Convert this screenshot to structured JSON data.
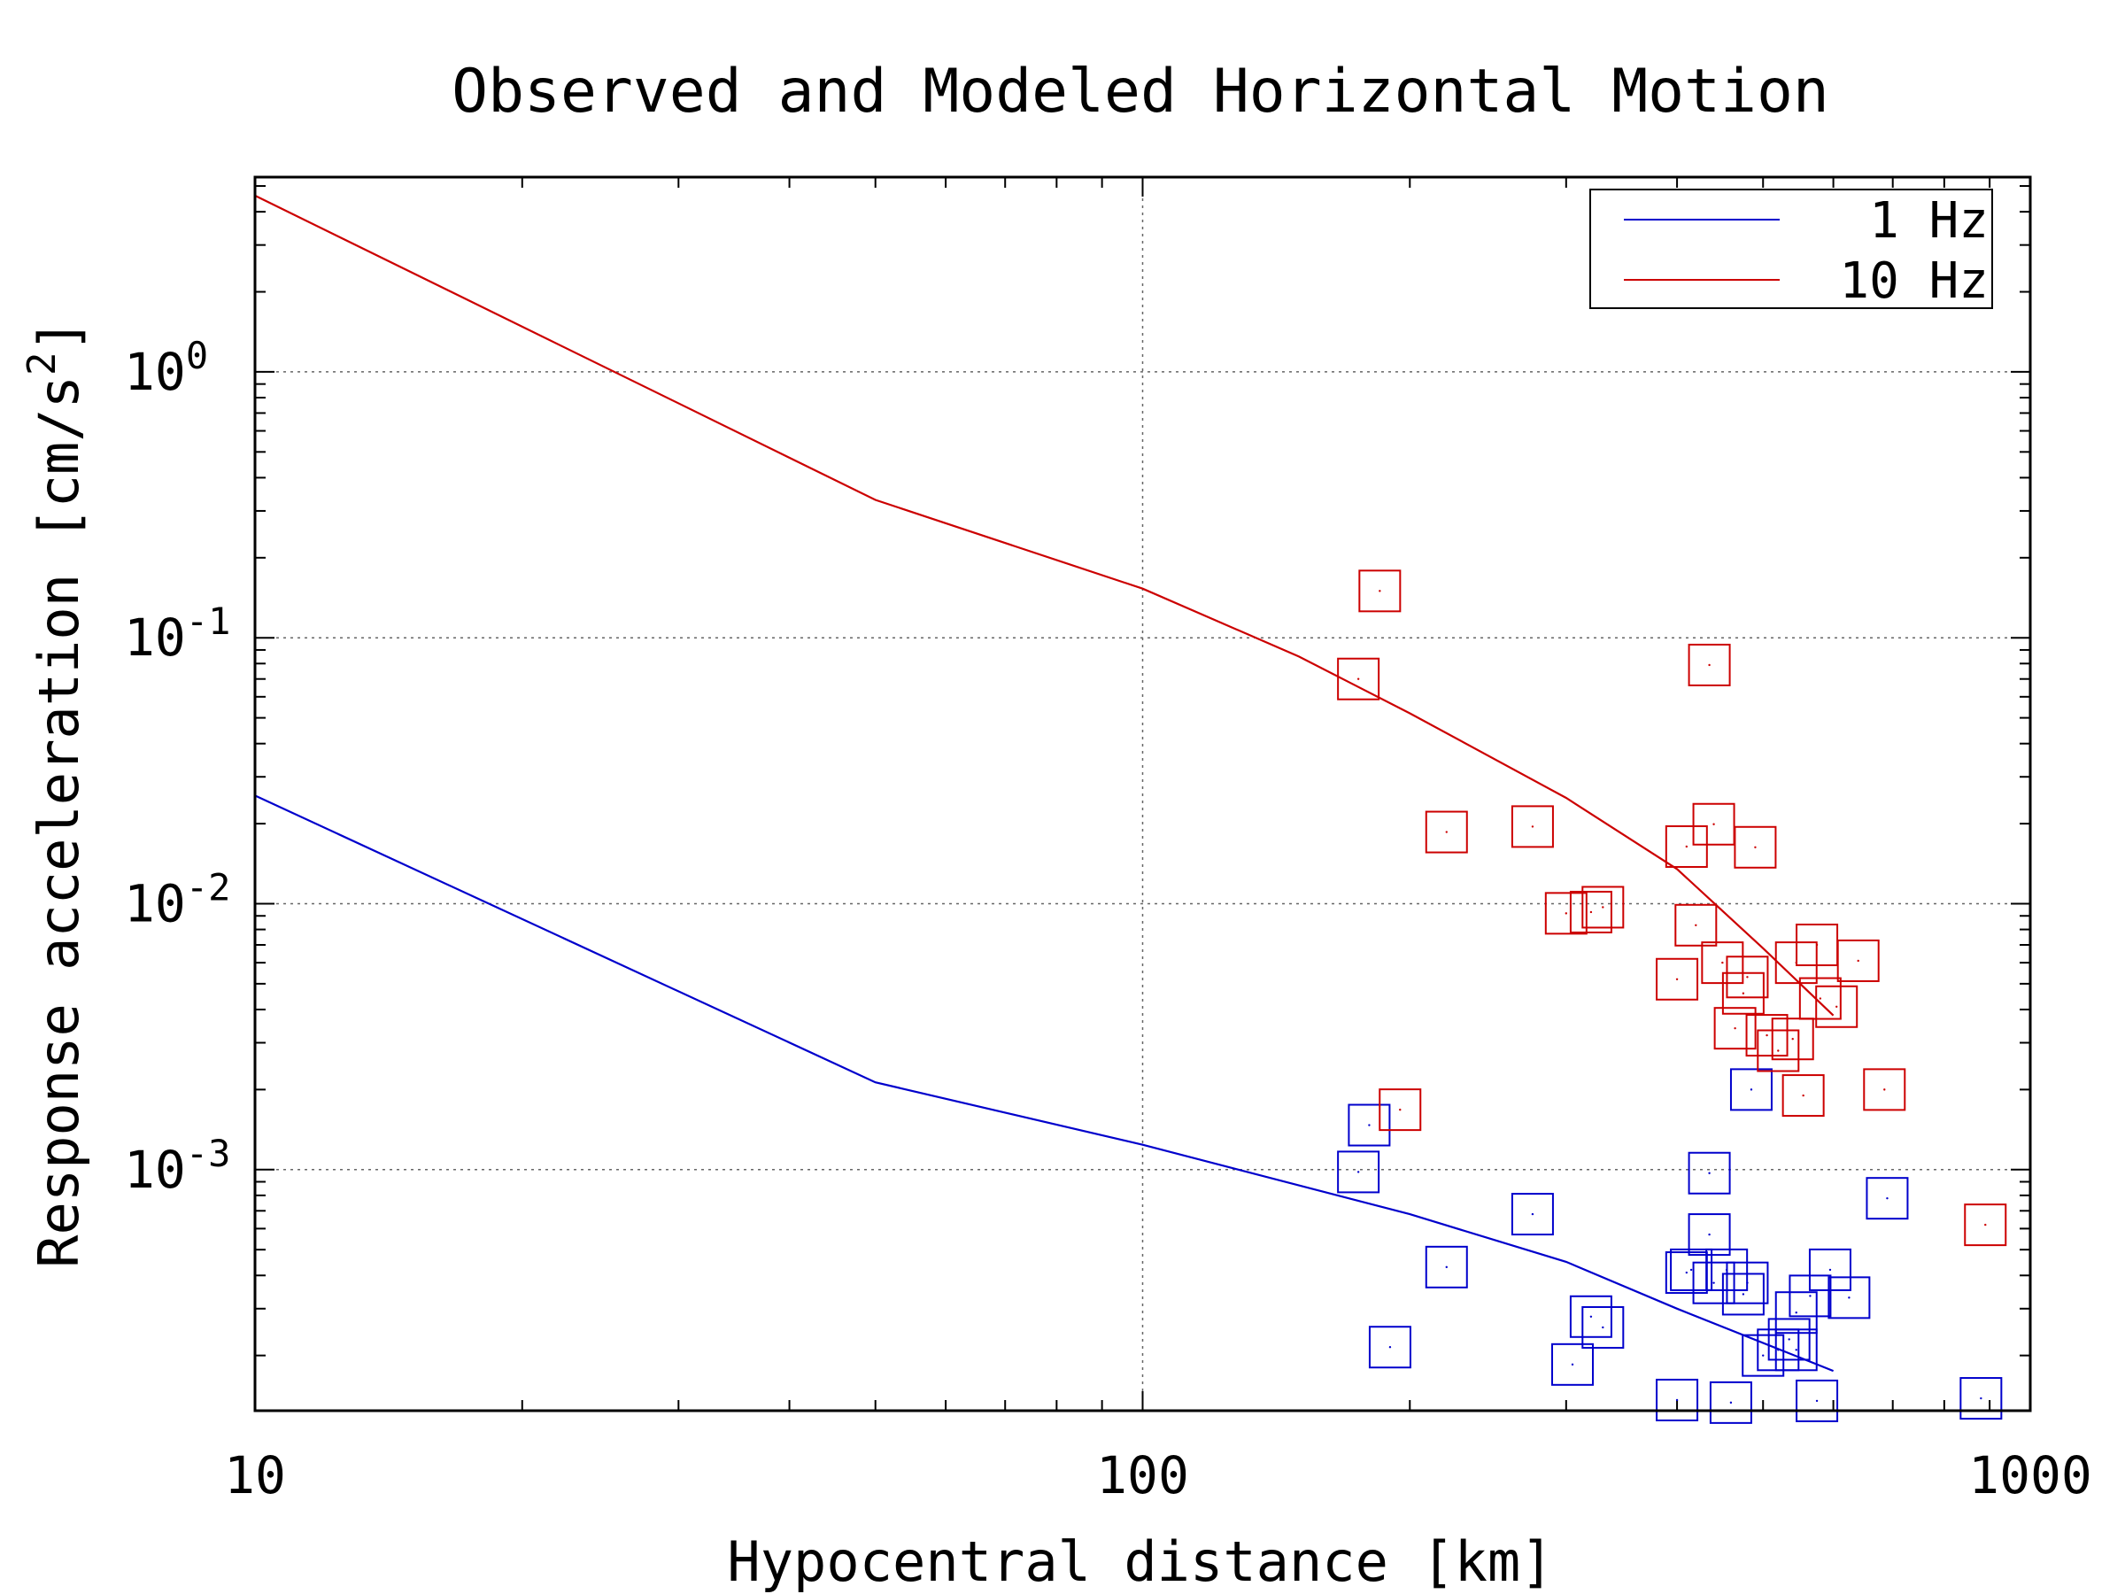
{
  "chart_data": {
    "type": "scatter",
    "title": "Observed and Modeled Horizontal Motion",
    "xlabel": "Hypocentral distance [km]",
    "ylabel_prefix": "Response acceleration [cm/s",
    "ylabel_exp": "2",
    "ylabel_suffix": "]",
    "xscale": "log",
    "yscale": "log",
    "xlim": [
      10,
      1000
    ],
    "ylim": [
      0.000124,
      5.4
    ],
    "grid": true,
    "legend_position": "top-right",
    "x_ticks": [
      {
        "value": 10,
        "label": "10"
      },
      {
        "value": 100,
        "label": "100"
      },
      {
        "value": 1000,
        "label": "1000"
      }
    ],
    "y_ticks": [
      {
        "value": 1,
        "base": "10",
        "exp": "0"
      },
      {
        "value": 0.1,
        "base": "10",
        "exp": "-1"
      },
      {
        "value": 0.01,
        "base": "10",
        "exp": "-2"
      },
      {
        "value": 0.001,
        "base": "10",
        "exp": "-3"
      }
    ],
    "series": [
      {
        "name": "1 Hz",
        "color": "#0000cc",
        "line": [
          [
            10,
            0.0255
          ],
          [
            50,
            0.00213
          ],
          [
            100,
            0.00124
          ],
          [
            200,
            0.00068
          ],
          [
            300,
            0.00045
          ],
          [
            400,
            0.0003
          ],
          [
            600,
            0.000175
          ]
        ],
        "points": [
          [
            180,
            0.00147
          ],
          [
            175,
            0.00098
          ],
          [
            190,
            0.000215
          ],
          [
            220,
            0.00043
          ],
          [
            275,
            0.00068
          ],
          [
            305,
            0.000185
          ],
          [
            320,
            0.00028
          ],
          [
            330,
            0.000255
          ],
          [
            400,
            0.000136
          ],
          [
            410,
            0.00041
          ],
          [
            415,
            0.00042
          ],
          [
            435,
            0.00097
          ],
          [
            435,
            0.00057
          ],
          [
            440,
            0.000375
          ],
          [
            455,
            0.00042
          ],
          [
            460,
            0.000133
          ],
          [
            475,
            0.00034
          ],
          [
            480,
            0.000375
          ],
          [
            485,
            0.002
          ],
          [
            500,
            0.0002
          ],
          [
            520,
            0.00021
          ],
          [
            535,
            0.00023
          ],
          [
            545,
            0.00029
          ],
          [
            545,
            0.00021
          ],
          [
            565,
            0.000335
          ],
          [
            575,
            0.000135
          ],
          [
            595,
            0.00042
          ],
          [
            625,
            0.00033
          ],
          [
            690,
            0.00078
          ],
          [
            880,
            0.000138
          ]
        ]
      },
      {
        "name": "10 Hz",
        "color": "#cc0000",
        "line": [
          [
            10,
            4.6
          ],
          [
            50,
            0.33
          ],
          [
            100,
            0.153
          ],
          [
            150,
            0.085
          ],
          [
            200,
            0.052
          ],
          [
            300,
            0.025
          ],
          [
            400,
            0.0135
          ],
          [
            500,
            0.0068
          ],
          [
            600,
            0.0038
          ]
        ],
        "points": [
          [
            185,
            0.15
          ],
          [
            175,
            0.07
          ],
          [
            195,
            0.00168
          ],
          [
            220,
            0.0186
          ],
          [
            275,
            0.0195
          ],
          [
            300,
            0.0092
          ],
          [
            320,
            0.0093
          ],
          [
            330,
            0.0097
          ],
          [
            400,
            0.0052
          ],
          [
            410,
            0.0164
          ],
          [
            420,
            0.0083
          ],
          [
            435,
            0.079
          ],
          [
            440,
            0.0199
          ],
          [
            450,
            0.006
          ],
          [
            465,
            0.0034
          ],
          [
            475,
            0.0046
          ],
          [
            480,
            0.0053
          ],
          [
            490,
            0.0163
          ],
          [
            505,
            0.0032
          ],
          [
            520,
            0.0028
          ],
          [
            540,
            0.0031
          ],
          [
            545,
            0.006
          ],
          [
            555,
            0.0019
          ],
          [
            575,
            0.007
          ],
          [
            580,
            0.0044
          ],
          [
            605,
            0.0041
          ],
          [
            640,
            0.0061
          ],
          [
            685,
            0.002
          ],
          [
            890,
            0.00062
          ]
        ]
      }
    ]
  }
}
